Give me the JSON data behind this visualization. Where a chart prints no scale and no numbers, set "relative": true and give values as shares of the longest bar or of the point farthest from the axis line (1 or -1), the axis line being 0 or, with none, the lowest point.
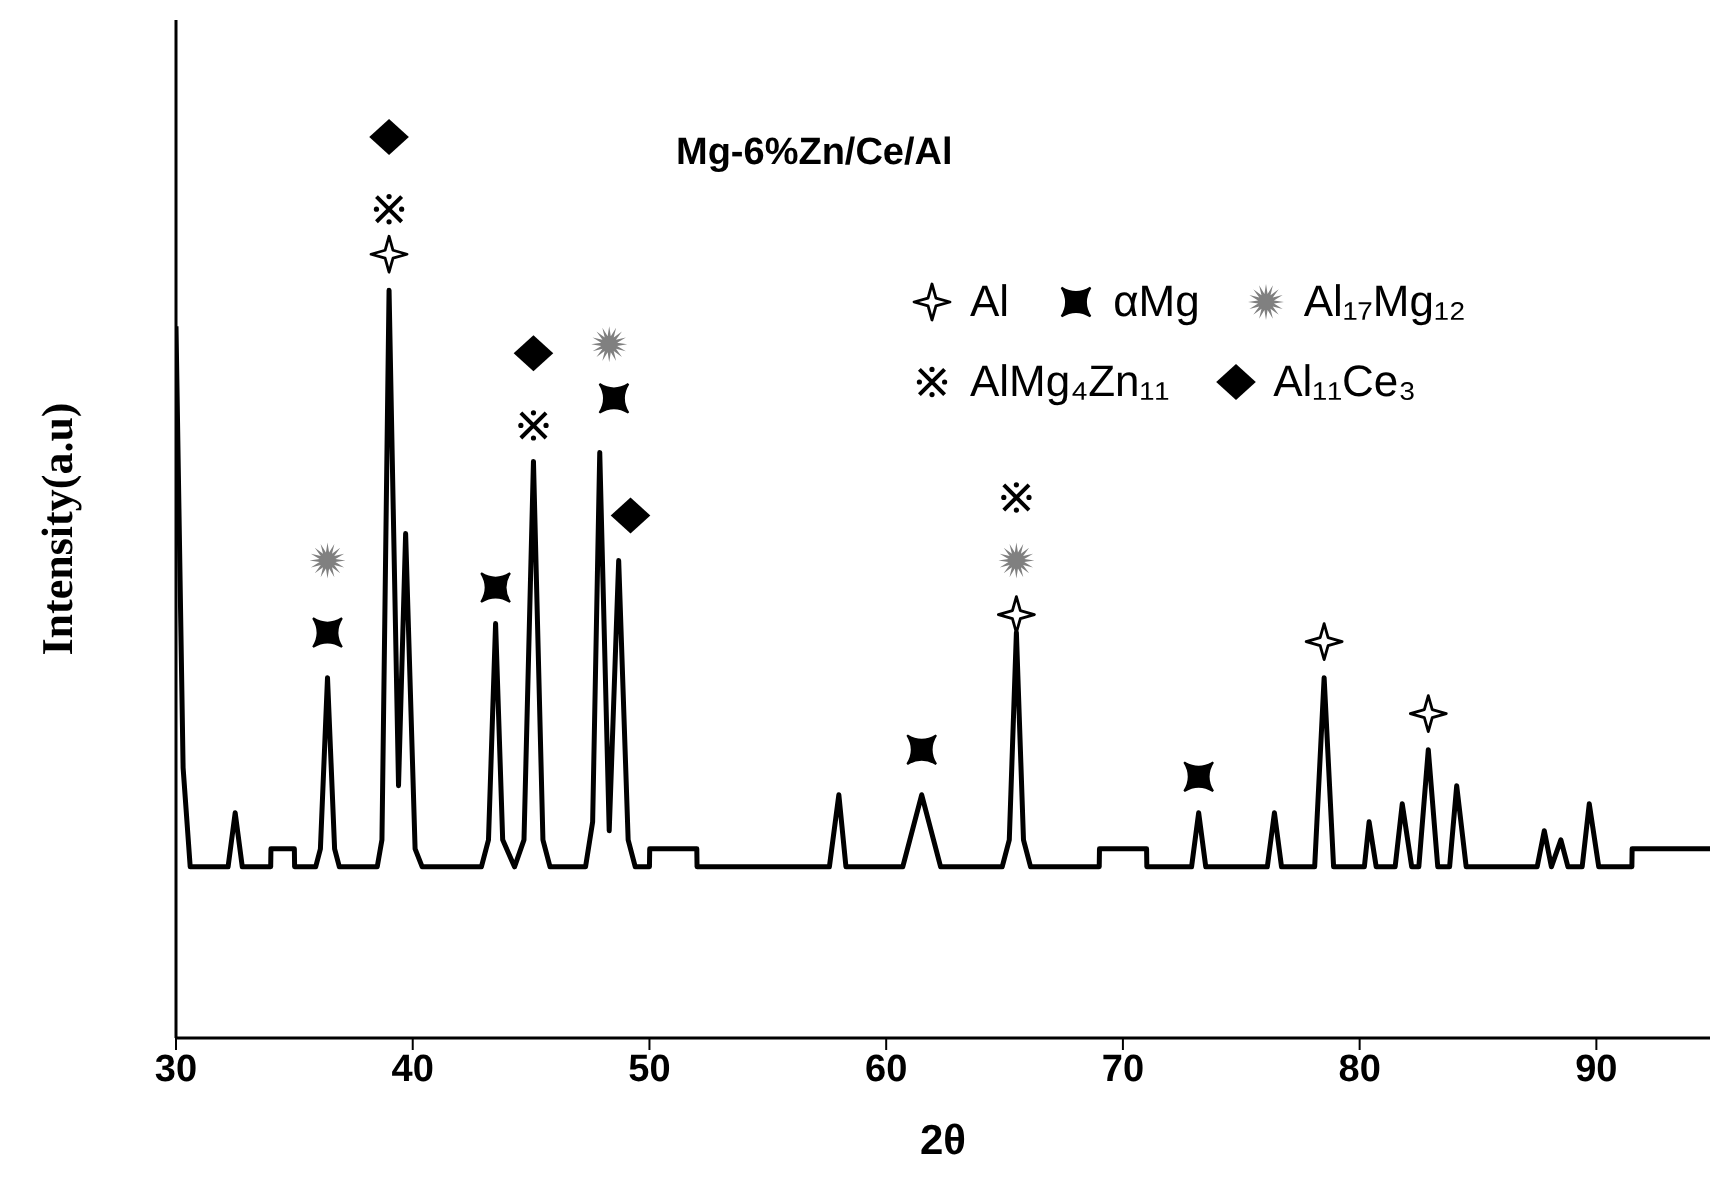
{
  "chart_data": {
    "type": "line",
    "title": "Mg-6%Zn/Ce/Al",
    "xlabel": "2θ",
    "ylabel": "Intensity(a.u)",
    "relative": true,
    "xlim": [
      30,
      94.8
    ],
    "xticks": [
      30,
      40,
      50,
      60,
      70,
      80,
      90
    ],
    "grid": false,
    "legend": "top right",
    "series": [
      {
        "color": "#000000",
        "marker": "none",
        "x": [
          30,
          30.3,
          30.6,
          32.2,
          32.5,
          32.8,
          34,
          34.01,
          35,
          35.01,
          35.9,
          36.1,
          36.4,
          36.7,
          36.9,
          38.5,
          38.7,
          39.0,
          39.4,
          39.7,
          40.1,
          40.4,
          42.9,
          43.2,
          43.5,
          43.8,
          44.3,
          44.7,
          45.1,
          45.5,
          45.8,
          47.3,
          47.6,
          47.9,
          48.3,
          48.7,
          49.1,
          49.4,
          50,
          50.01,
          52,
          52.01,
          57.6,
          58.0,
          58.3,
          60.7,
          61.0,
          61.5,
          62.0,
          62.3,
          64.9,
          65.2,
          65.5,
          65.8,
          66.1,
          69,
          69.01,
          71,
          71.01,
          72.9,
          73.2,
          73.5,
          76.1,
          76.4,
          76.7,
          78.1,
          78.5,
          78.9,
          80.2,
          80.4,
          80.7,
          81.5,
          81.8,
          82.2,
          82.5,
          82.9,
          83.3,
          83.8,
          84.1,
          84.5,
          87.5,
          87.8,
          88.1,
          88.5,
          88.8,
          89.4,
          89.7,
          90.1,
          91.5,
          91.51,
          94.8
        ],
        "values": [
          0.79,
          0.3,
          0.19,
          0.19,
          0.25,
          0.19,
          0.19,
          0.21,
          0.21,
          0.19,
          0.19,
          0.21,
          0.4,
          0.21,
          0.19,
          0.19,
          0.22,
          0.83,
          0.28,
          0.56,
          0.21,
          0.19,
          0.19,
          0.22,
          0.46,
          0.22,
          0.19,
          0.22,
          0.64,
          0.22,
          0.19,
          0.19,
          0.24,
          0.65,
          0.23,
          0.53,
          0.22,
          0.19,
          0.19,
          0.21,
          0.21,
          0.19,
          0.19,
          0.27,
          0.19,
          0.19,
          0.22,
          0.27,
          0.22,
          0.19,
          0.19,
          0.22,
          0.45,
          0.22,
          0.19,
          0.19,
          0.21,
          0.21,
          0.19,
          0.19,
          0.25,
          0.19,
          0.19,
          0.25,
          0.19,
          0.19,
          0.4,
          0.19,
          0.19,
          0.24,
          0.19,
          0.19,
          0.26,
          0.19,
          0.19,
          0.32,
          0.19,
          0.19,
          0.28,
          0.19,
          0.19,
          0.23,
          0.19,
          0.22,
          0.19,
          0.19,
          0.26,
          0.19,
          0.19,
          0.21,
          0.21
        ]
      },
      {
        "type": "scatter",
        "name": "Al",
        "color": "#000000",
        "marker": "star",
        "x": [
          39.0,
          65.5,
          78.5,
          82.9
        ],
        "values": [
          0.87,
          0.47,
          0.44,
          0.36
        ]
      },
      {
        "type": "scatter",
        "name": "αMg",
        "color": "#000000",
        "marker": "square",
        "x": [
          36.4,
          43.5,
          48.5,
          61.5,
          73.2
        ],
        "values": [
          0.45,
          0.5,
          0.71,
          0.32,
          0.29
        ]
      },
      {
        "type": "scatter",
        "name": "Al₁₇Mg₁₂",
        "color": "#808080",
        "marker": "circle",
        "x": [
          36.4,
          48.3,
          65.5
        ],
        "values": [
          0.53,
          0.77,
          0.53
        ]
      },
      {
        "type": "scatter",
        "name": "AlMg₄Zn₁₁",
        "color": "#000000",
        "marker": "cross",
        "x": [
          39.0,
          45.1,
          65.5
        ],
        "values": [
          0.92,
          0.68,
          0.6
        ]
      },
      {
        "type": "scatter",
        "name": "Al₁₁Ce₃",
        "color": "#000000",
        "marker": "diamond",
        "x": [
          39.0,
          45.1,
          49.2
        ],
        "values": [
          1.0,
          0.76,
          0.58
        ]
      }
    ]
  }
}
